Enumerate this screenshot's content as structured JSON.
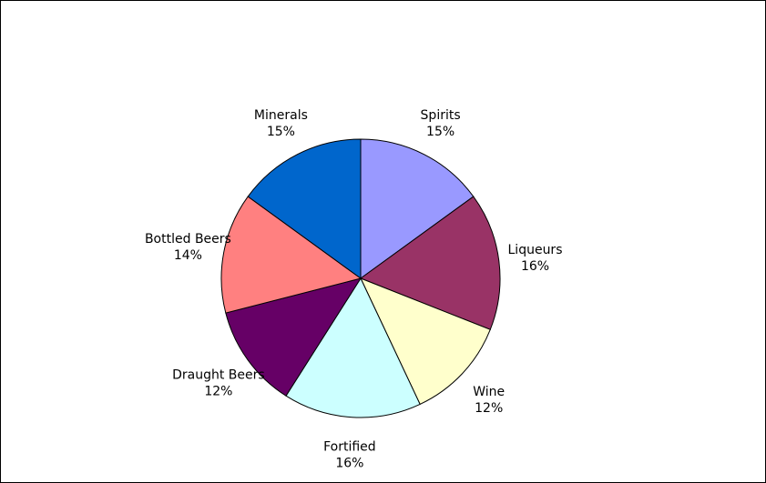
{
  "chart_data": {
    "type": "pie",
    "title": "",
    "slices": [
      {
        "label": "Spirits",
        "value": 15,
        "display": "15%",
        "color": "#9999FF"
      },
      {
        "label": "Liqueurs",
        "value": 16,
        "display": "16%",
        "color": "#993366"
      },
      {
        "label": "Wine",
        "value": 12,
        "display": "12%",
        "color": "#FFFFCC"
      },
      {
        "label": "Fortified",
        "value": 16,
        "display": "16%",
        "color": "#CCFFFF"
      },
      {
        "label": "Draught Beers",
        "value": 12,
        "display": "12%",
        "color": "#660066"
      },
      {
        "label": "Bottled Beers",
        "value": 14,
        "display": "14%",
        "color": "#FF8080"
      },
      {
        "label": "Minerals",
        "value": 15,
        "display": "15%",
        "color": "#0066CC"
      }
    ],
    "start_angle": "12 o'clock",
    "direction": "clockwise",
    "legend": "none"
  }
}
